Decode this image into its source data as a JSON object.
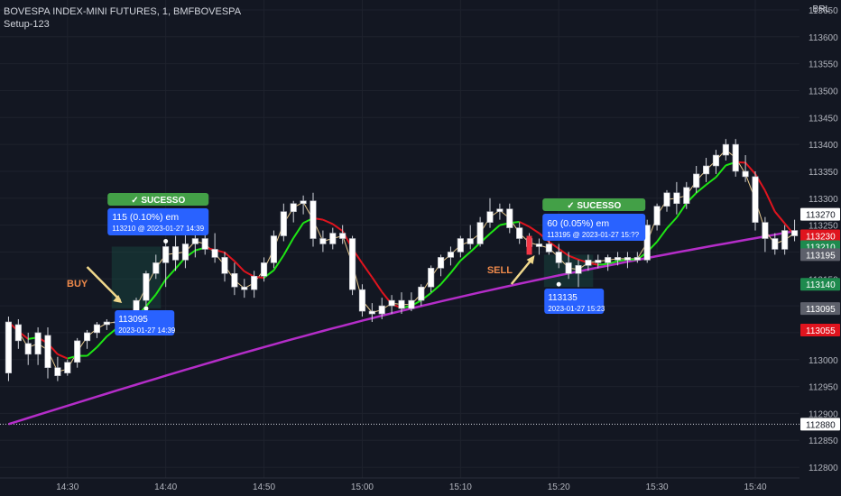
{
  "header": {
    "title": "BOVESPA INDEX-MINI FUTURES, 1, BMFBOVESPA",
    "indicator": "Setup-123"
  },
  "currency": "BRL",
  "colors": {
    "bg": "#131722",
    "up": "#ffffff",
    "down": "#ffffff",
    "wick": "#d1d4dc",
    "red_line": "#e0141e",
    "green_line": "#1ee614",
    "thin_line": "#e6c88c",
    "ma_line": "#b42dc8",
    "info_box": "#2962ff",
    "success": "#43a047",
    "arrow": "#f0d88c",
    "buy_text": "#ef8a4b",
    "sell_text": "#ef8a4b"
  },
  "chart_data": {
    "type": "candlestick",
    "y_ticks": [
      "112800",
      "112850",
      "112900",
      "112950",
      "113000",
      "113050",
      "113100",
      "113150",
      "113200",
      "113250",
      "113300",
      "113350",
      "113400",
      "113450",
      "113500",
      "113550",
      "113600",
      "113650"
    ],
    "ylim": [
      112780,
      113660
    ],
    "x_ticks": [
      "14:30",
      "14:40",
      "14:50",
      "15:00",
      "15:10",
      "15:20",
      "15:30",
      "15:40"
    ],
    "x_tick_index": [
      6,
      16,
      26,
      36,
      46,
      56,
      66,
      76
    ],
    "candles": [
      {
        "o": 112975,
        "h": 113080,
        "l": 112960,
        "c": 113070
      },
      {
        "o": 113065,
        "h": 113075,
        "l": 113020,
        "c": 113035
      },
      {
        "o": 113030,
        "h": 113050,
        "l": 112990,
        "c": 113010
      },
      {
        "o": 113010,
        "h": 113060,
        "l": 112990,
        "c": 113050
      },
      {
        "o": 113045,
        "h": 113060,
        "l": 112965,
        "c": 112985
      },
      {
        "o": 112985,
        "h": 113005,
        "l": 112960,
        "c": 112970
      },
      {
        "o": 112975,
        "h": 113000,
        "l": 112970,
        "c": 112995
      },
      {
        "o": 112995,
        "h": 113040,
        "l": 112985,
        "c": 113035
      },
      {
        "o": 113035,
        "h": 113055,
        "l": 113020,
        "c": 113050
      },
      {
        "o": 113050,
        "h": 113070,
        "l": 113040,
        "c": 113065
      },
      {
        "o": 113065,
        "h": 113075,
        "l": 113055,
        "c": 113070
      },
      {
        "o": 113070,
        "h": 113080,
        "l": 113060,
        "c": 113070
      },
      {
        "o": 113070,
        "h": 113090,
        "l": 113055,
        "c": 113085
      },
      {
        "o": 113085,
        "h": 113115,
        "l": 113075,
        "c": 113110
      },
      {
        "o": 113110,
        "h": 113165,
        "l": 113100,
        "c": 113160
      },
      {
        "o": 113160,
        "h": 113195,
        "l": 113150,
        "c": 113180
      },
      {
        "o": 113180,
        "h": 113220,
        "l": 113135,
        "c": 113210
      },
      {
        "o": 113210,
        "h": 113230,
        "l": 113165,
        "c": 113185
      },
      {
        "o": 113185,
        "h": 113235,
        "l": 113170,
        "c": 113215
      },
      {
        "o": 113215,
        "h": 113240,
        "l": 113190,
        "c": 113225
      },
      {
        "o": 113225,
        "h": 113240,
        "l": 113195,
        "c": 113205
      },
      {
        "o": 113205,
        "h": 113235,
        "l": 113180,
        "c": 113190
      },
      {
        "o": 113190,
        "h": 113200,
        "l": 113145,
        "c": 113160
      },
      {
        "o": 113160,
        "h": 113180,
        "l": 113120,
        "c": 113135
      },
      {
        "o": 113135,
        "h": 113150,
        "l": 113115,
        "c": 113130
      },
      {
        "o": 113130,
        "h": 113165,
        "l": 113115,
        "c": 113155
      },
      {
        "o": 113155,
        "h": 113190,
        "l": 113145,
        "c": 113180
      },
      {
        "o": 113180,
        "h": 113240,
        "l": 113170,
        "c": 113230
      },
      {
        "o": 113230,
        "h": 113290,
        "l": 113220,
        "c": 113275
      },
      {
        "o": 113275,
        "h": 113295,
        "l": 113255,
        "c": 113290
      },
      {
        "o": 113290,
        "h": 113305,
        "l": 113270,
        "c": 113295
      },
      {
        "o": 113295,
        "h": 113310,
        "l": 113210,
        "c": 113225
      },
      {
        "o": 113225,
        "h": 113240,
        "l": 113200,
        "c": 113215
      },
      {
        "o": 113215,
        "h": 113245,
        "l": 113205,
        "c": 113235
      },
      {
        "o": 113235,
        "h": 113250,
        "l": 113215,
        "c": 113225
      },
      {
        "o": 113225,
        "h": 113230,
        "l": 113120,
        "c": 113130
      },
      {
        "o": 113130,
        "h": 113140,
        "l": 113080,
        "c": 113090
      },
      {
        "o": 113090,
        "h": 113105,
        "l": 113070,
        "c": 113085
      },
      {
        "o": 113085,
        "h": 113115,
        "l": 113075,
        "c": 113100
      },
      {
        "o": 113100,
        "h": 113120,
        "l": 113085,
        "c": 113110
      },
      {
        "o": 113110,
        "h": 113125,
        "l": 113085,
        "c": 113095
      },
      {
        "o": 113095,
        "h": 113125,
        "l": 113090,
        "c": 113110
      },
      {
        "o": 113110,
        "h": 113140,
        "l": 113100,
        "c": 113135
      },
      {
        "o": 113135,
        "h": 113175,
        "l": 113125,
        "c": 113170
      },
      {
        "o": 113170,
        "h": 113195,
        "l": 113155,
        "c": 113190
      },
      {
        "o": 113190,
        "h": 113210,
        "l": 113175,
        "c": 113200
      },
      {
        "o": 113200,
        "h": 113230,
        "l": 113190,
        "c": 113225
      },
      {
        "o": 113225,
        "h": 113250,
        "l": 113205,
        "c": 113215
      },
      {
        "o": 113215,
        "h": 113265,
        "l": 113210,
        "c": 113255
      },
      {
        "o": 113255,
        "h": 113300,
        "l": 113245,
        "c": 113275
      },
      {
        "o": 113275,
        "h": 113290,
        "l": 113260,
        "c": 113280
      },
      {
        "o": 113280,
        "h": 113290,
        "l": 113235,
        "c": 113245
      },
      {
        "o": 113245,
        "h": 113255,
        "l": 113215,
        "c": 113225
      },
      {
        "o": 113225,
        "h": 113235,
        "l": 113195,
        "c": 113210
      },
      {
        "o": 113210,
        "h": 113225,
        "l": 113195,
        "c": 113215
      },
      {
        "o": 113215,
        "h": 113230,
        "l": 113195,
        "c": 113200
      },
      {
        "o": 113200,
        "h": 113215,
        "l": 113170,
        "c": 113180
      },
      {
        "o": 113180,
        "h": 113200,
        "l": 113150,
        "c": 113160
      },
      {
        "o": 113160,
        "h": 113185,
        "l": 113135,
        "c": 113175
      },
      {
        "o": 113175,
        "h": 113195,
        "l": 113165,
        "c": 113185
      },
      {
        "o": 113185,
        "h": 113195,
        "l": 113170,
        "c": 113180
      },
      {
        "o": 113180,
        "h": 113195,
        "l": 113165,
        "c": 113190
      },
      {
        "o": 113190,
        "h": 113200,
        "l": 113175,
        "c": 113185
      },
      {
        "o": 113185,
        "h": 113200,
        "l": 113170,
        "c": 113190
      },
      {
        "o": 113190,
        "h": 113200,
        "l": 113180,
        "c": 113185
      },
      {
        "o": 113185,
        "h": 113260,
        "l": 113180,
        "c": 113250
      },
      {
        "o": 113250,
        "h": 113290,
        "l": 113240,
        "c": 113285
      },
      {
        "o": 113285,
        "h": 113315,
        "l": 113275,
        "c": 113310
      },
      {
        "o": 113310,
        "h": 113330,
        "l": 113270,
        "c": 113290
      },
      {
        "o": 113290,
        "h": 113330,
        "l": 113280,
        "c": 113320
      },
      {
        "o": 113320,
        "h": 113360,
        "l": 113310,
        "c": 113345
      },
      {
        "o": 113345,
        "h": 113375,
        "l": 113330,
        "c": 113360
      },
      {
        "o": 113360,
        "h": 113390,
        "l": 113345,
        "c": 113380
      },
      {
        "o": 113380,
        "h": 113410,
        "l": 113370,
        "c": 113400
      },
      {
        "o": 113400,
        "h": 113410,
        "l": 113340,
        "c": 113350
      },
      {
        "o": 113350,
        "h": 113380,
        "l": 113330,
        "c": 113340
      },
      {
        "o": 113340,
        "h": 113350,
        "l": 113240,
        "c": 113255
      },
      {
        "o": 113255,
        "h": 113265,
        "l": 113200,
        "c": 113225
      },
      {
        "o": 113225,
        "h": 113235,
        "l": 113195,
        "c": 113205
      },
      {
        "o": 113205,
        "h": 113250,
        "l": 113195,
        "c": 113240
      },
      {
        "o": 113240,
        "h": 113260,
        "l": 113220,
        "c": 113230
      }
    ],
    "ma_purple": [
      112880,
      113270
    ],
    "price_labels": [
      {
        "text": "113270",
        "bg": "#ffffff",
        "fg": "#131722",
        "y": 113270
      },
      {
        "text": "113230",
        "bg": "#e0141e",
        "fg": "#ffffff",
        "y": 113230
      },
      {
        "text": "113210",
        "bg": "#1e8a4e",
        "fg": "#ffffff",
        "y": 113210
      },
      {
        "text": "113195",
        "bg": "#5d606b",
        "fg": "#ffffff",
        "y": 113195
      },
      {
        "text": "113140",
        "bg": "#1e8a4e",
        "fg": "#ffffff",
        "y": 113140
      },
      {
        "text": "113095",
        "bg": "#5d606b",
        "fg": "#ffffff",
        "y": 113095
      },
      {
        "text": "113055",
        "bg": "#e0141e",
        "fg": "#ffffff",
        "y": 113055
      },
      {
        "text": "112880",
        "bg": "#ffffff",
        "fg": "#131722",
        "y": 112880
      }
    ],
    "horizontal_line": 112880
  },
  "trade1": {
    "signal": "BUY",
    "success": "✓ SUCESSO",
    "result": "115 (0.10%) em",
    "exit": "113210 @ 2023-01-27  14:39",
    "entry_price": "113095",
    "entry_time": "2023-01-27 14:39"
  },
  "trade2": {
    "signal": "SELL",
    "success": "✓ SUCESSO",
    "result": "60 (0.05%) em",
    "exit": "113195 @ 2023-01-27  15:??",
    "entry_price": "113135",
    "entry_time": "2023-01-27 15:23"
  }
}
